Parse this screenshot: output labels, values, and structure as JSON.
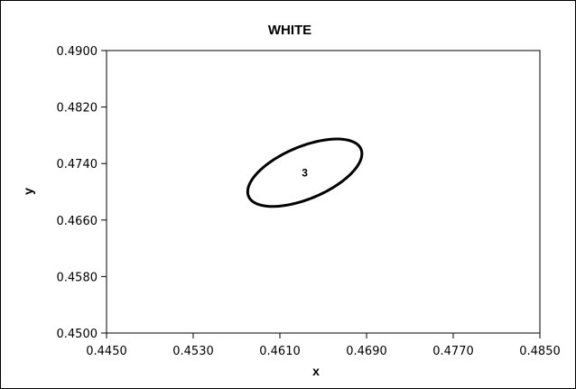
{
  "chart_data": {
    "type": "scatter",
    "title": "WHITE",
    "xlabel": "x",
    "ylabel": "y",
    "xlim": [
      0.445,
      0.485
    ],
    "ylim": [
      0.45,
      0.49
    ],
    "x_ticks": [
      "0.4450",
      "0.4530",
      "0.4610",
      "0.4690",
      "0.4770",
      "0.4850"
    ],
    "y_ticks": [
      "0.4900",
      "0.4820",
      "0.4740",
      "0.4660",
      "0.4580",
      "0.4500"
    ],
    "x_tick_values": [
      0.445,
      0.453,
      0.461,
      0.469,
      0.477,
      0.485
    ],
    "y_tick_values": [
      0.49,
      0.482,
      0.474,
      0.466,
      0.458,
      0.45
    ],
    "grid": false,
    "legend": "none",
    "ellipses": [
      {
        "label": "3",
        "center_x": 0.4633,
        "center_y": 0.4727,
        "semi_major": 0.0063,
        "semi_minor": 0.0033,
        "angle_deg": 40
      }
    ]
  }
}
